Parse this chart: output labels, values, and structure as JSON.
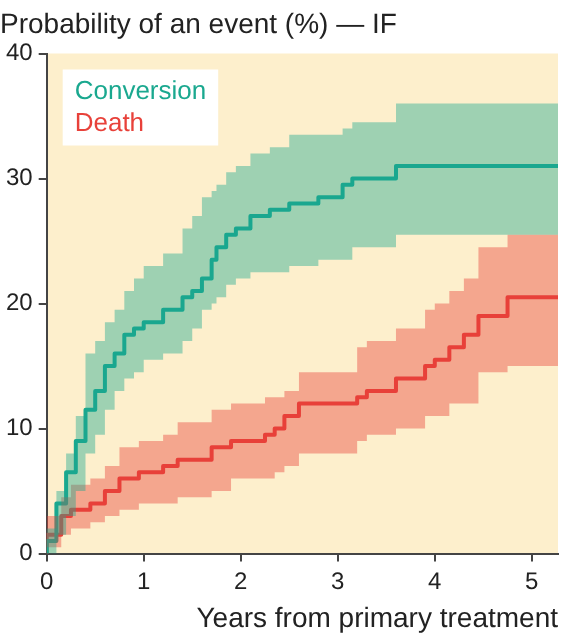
{
  "chart_data": {
    "type": "step",
    "title": "Probability of an event (%) — IF",
    "xlabel": "Years from primary treatment",
    "xlim": [
      0,
      5.27
    ],
    "xticks": [
      0,
      1,
      2,
      3,
      4,
      5
    ],
    "ylim": [
      0,
      40
    ],
    "yticks": [
      0,
      10,
      20,
      30,
      40
    ],
    "grid": false,
    "legend": "top left",
    "series": [
      {
        "name": "Conversion",
        "color": "#1aa88f",
        "x": [
          0,
          0.1,
          0.2,
          0.3,
          0.4,
          0.5,
          0.6,
          0.7,
          0.8,
          0.9,
          1.0,
          1.2,
          1.4,
          1.5,
          1.6,
          1.7,
          1.75,
          1.85,
          1.95,
          2.1,
          2.3,
          2.5,
          2.8,
          3.05,
          3.15,
          3.6,
          4.2,
          5.27
        ],
        "values": [
          0,
          1,
          4,
          6.5,
          9,
          11.5,
          13,
          15,
          16,
          17.5,
          18,
          18.5,
          19.5,
          20.5,
          21,
          22,
          23.5,
          24.5,
          25.5,
          26,
          27,
          27.5,
          28,
          28.5,
          29.5,
          30,
          31,
          31
        ],
        "upper": [
          0,
          2,
          5,
          8,
          11,
          16,
          17,
          18.5,
          19.5,
          21,
          22,
          23,
          24,
          26,
          27,
          28.5,
          29,
          29.5,
          30.5,
          31,
          32,
          32.5,
          33.5,
          33.5,
          34,
          34.5,
          36,
          36
        ],
        "lower": [
          0,
          0,
          1.5,
          3,
          5,
          8,
          9.5,
          11.5,
          13,
          14,
          14.5,
          15.5,
          16,
          17,
          18,
          19.5,
          20,
          20.5,
          21.5,
          22,
          22.5,
          22.5,
          23,
          23.5,
          23.5,
          24.5,
          25.5,
          25.5
        ]
      },
      {
        "name": "Death",
        "color": "#e8413a",
        "x": [
          0,
          0.15,
          0.25,
          0.45,
          0.6,
          0.75,
          0.95,
          1.2,
          1.35,
          1.7,
          1.9,
          2.25,
          2.35,
          2.45,
          2.6,
          3.2,
          3.3,
          3.6,
          3.9,
          4.0,
          4.15,
          4.3,
          4.45,
          4.75,
          4.8,
          5.27
        ],
        "values": [
          0,
          1.5,
          3,
          3.5,
          4,
          5,
          6,
          6.5,
          7,
          7.5,
          8.5,
          9,
          9.5,
          10,
          11,
          12,
          12.5,
          13,
          14,
          15,
          15.5,
          16.5,
          17.5,
          19,
          20.5,
          20.5
        ],
        "upper": [
          0,
          3,
          4.5,
          5.5,
          6,
          7,
          8.5,
          9,
          9.5,
          10.5,
          11.5,
          12,
          12.5,
          12.5,
          13,
          14.5,
          16.5,
          17,
          18,
          19.5,
          20,
          21,
          22,
          24.5,
          25.5,
          25.5
        ],
        "lower": [
          0,
          0.5,
          1.5,
          2,
          2.5,
          3,
          3.5,
          4,
          4,
          4.5,
          5,
          6,
          6,
          6.5,
          7,
          8,
          9,
          9.5,
          10,
          11,
          11,
          12,
          12,
          14.5,
          15,
          15
        ]
      }
    ]
  }
}
